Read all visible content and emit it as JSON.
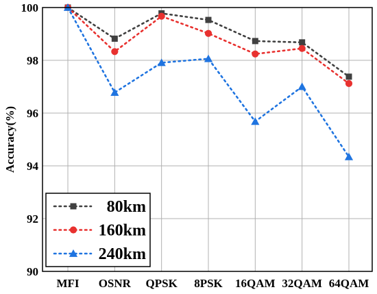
{
  "chart_data": {
    "type": "line",
    "categories": [
      "MFI",
      "OSNR",
      "QPSK",
      "8PSK",
      "16QAM",
      "32QAM",
      "64QAM"
    ],
    "ylabel": "Accuracy(%)",
    "ylim": [
      90,
      100
    ],
    "yticks": [
      "90",
      "92",
      "94",
      "96",
      "98",
      "100"
    ],
    "grid": true,
    "legend_position": "bottom-left",
    "series": [
      {
        "name": "80km",
        "color": "#404040",
        "marker": "square",
        "values": [
          100,
          98.82,
          99.78,
          99.53,
          98.73,
          98.68,
          97.38
        ]
      },
      {
        "name": "160km",
        "color": "#e8312f",
        "marker": "circle",
        "values": [
          100,
          98.33,
          99.67,
          99.02,
          98.24,
          98.45,
          97.12
        ]
      },
      {
        "name": "240km",
        "color": "#1f74e0",
        "marker": "triangle",
        "values": [
          100,
          96.78,
          97.91,
          98.06,
          95.68,
          97.0,
          94.34
        ]
      }
    ]
  }
}
